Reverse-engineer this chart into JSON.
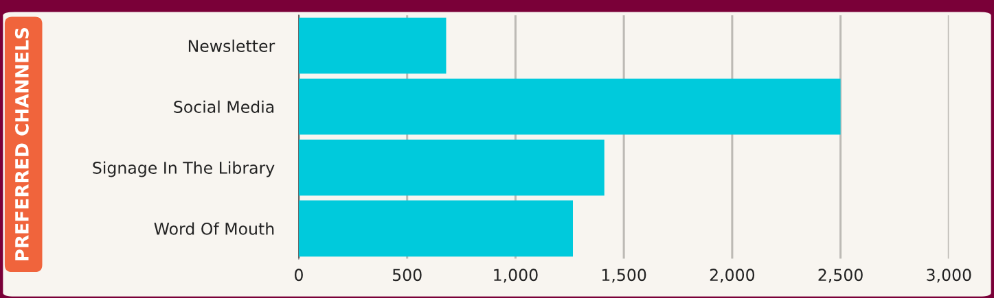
{
  "chart_data": {
    "type": "bar",
    "orientation": "horizontal",
    "ylabel": "PREFERRED CHANNELS",
    "categories": [
      "Newsletter",
      "Social Media",
      "Signage In The Library",
      "Word Of Mouth"
    ],
    "values": [
      680,
      2500,
      1410,
      1265
    ],
    "color": "#00cadc",
    "xlim": [
      0,
      3000
    ],
    "xticks": [
      0,
      {
        "value": 500,
        "label": "500"
      },
      {
        "value": 1000,
        "label": "1,000"
      },
      {
        "value": 1500,
        "label": "1,500"
      },
      {
        "value": 2000,
        "label": "2,000"
      },
      {
        "value": 2500,
        "label": "2,500"
      },
      {
        "value": 3000,
        "label": "3,000"
      }
    ],
    "grid": "x"
  }
}
